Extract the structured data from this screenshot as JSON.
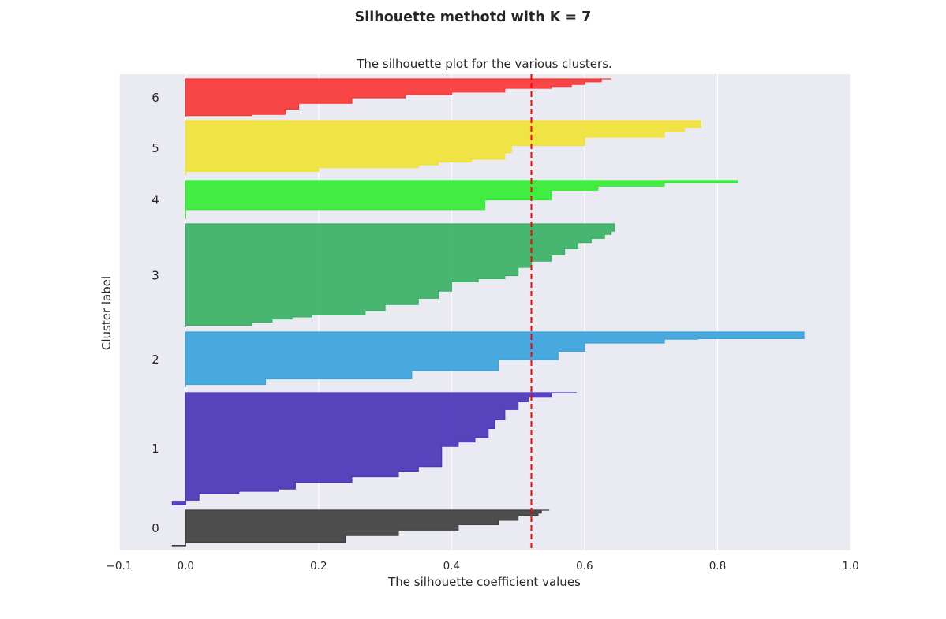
{
  "figure": {
    "suptitle": "Silhouette  methotd with K = 7"
  },
  "chart_data": {
    "type": "area",
    "title": "The silhouette plot for the various clusters.",
    "xlabel": "The silhouette coefficient values",
    "ylabel": "Cluster label",
    "xlim": [
      -0.1,
      1.0
    ],
    "xticks": [
      "−0.1",
      "0.0",
      "0.2",
      "0.4",
      "0.6",
      "0.8",
      "1.0"
    ],
    "grid": true,
    "average_silhouette": 0.52,
    "average_line_color": "#ff0000",
    "clusters": [
      {
        "label": "0",
        "color": "#3f3f3f",
        "profile": [
          [
            0,
            -0.02
          ],
          [
            0.03,
            0.0
          ],
          [
            0.06,
            0.0
          ],
          [
            0.12,
            0.24
          ],
          [
            0.3,
            0.32
          ],
          [
            0.45,
            0.41
          ],
          [
            0.6,
            0.47
          ],
          [
            0.72,
            0.5
          ],
          [
            0.85,
            0.53
          ],
          [
            0.92,
            0.535
          ],
          [
            1.0,
            0.547
          ]
        ]
      },
      {
        "label": "1",
        "color": "#4a35b8",
        "profile": [
          [
            0,
            -0.02
          ],
          [
            0.03,
            0.0
          ],
          [
            0.04,
            0.02
          ],
          [
            0.1,
            0.08
          ],
          [
            0.12,
            0.14
          ],
          [
            0.14,
            0.165
          ],
          [
            0.2,
            0.25
          ],
          [
            0.25,
            0.32
          ],
          [
            0.3,
            0.35
          ],
          [
            0.34,
            0.385
          ],
          [
            0.48,
            0.385
          ],
          [
            0.52,
            0.41
          ],
          [
            0.56,
            0.435
          ],
          [
            0.6,
            0.455
          ],
          [
            0.68,
            0.465
          ],
          [
            0.76,
            0.48
          ],
          [
            0.85,
            0.5
          ],
          [
            0.92,
            0.515
          ],
          [
            0.96,
            0.55
          ],
          [
            1.0,
            0.588
          ]
        ]
      },
      {
        "label": "2",
        "color": "#3aa3dd",
        "profile": [
          [
            0,
            0.0
          ],
          [
            0.05,
            0.12
          ],
          [
            0.15,
            0.34
          ],
          [
            0.3,
            0.47
          ],
          [
            0.5,
            0.56
          ],
          [
            0.65,
            0.6
          ],
          [
            0.8,
            0.72
          ],
          [
            0.87,
            0.77
          ],
          [
            0.88,
            0.93
          ],
          [
            1.0,
            0.93
          ]
        ]
      },
      {
        "label": "3",
        "color": "#39b065",
        "profile": [
          [
            0,
            0.0
          ],
          [
            0.02,
            0.1
          ],
          [
            0.05,
            0.13
          ],
          [
            0.08,
            0.16
          ],
          [
            0.1,
            0.19
          ],
          [
            0.12,
            0.27
          ],
          [
            0.16,
            0.3
          ],
          [
            0.22,
            0.35
          ],
          [
            0.28,
            0.38
          ],
          [
            0.35,
            0.4
          ],
          [
            0.44,
            0.44
          ],
          [
            0.47,
            0.48
          ],
          [
            0.5,
            0.5
          ],
          [
            0.58,
            0.52
          ],
          [
            0.64,
            0.55
          ],
          [
            0.7,
            0.57
          ],
          [
            0.76,
            0.59
          ],
          [
            0.82,
            0.61
          ],
          [
            0.86,
            0.63
          ],
          [
            0.9,
            0.64
          ],
          [
            0.93,
            0.645
          ],
          [
            1.0,
            0.645
          ]
        ]
      },
      {
        "label": "4",
        "color": "#33ec33",
        "profile": [
          [
            0,
            0.0
          ],
          [
            0.25,
            0.45
          ],
          [
            0.5,
            0.55
          ],
          [
            0.75,
            0.62
          ],
          [
            0.85,
            0.72
          ],
          [
            0.95,
            0.83
          ],
          [
            1.0,
            0.83
          ]
        ]
      },
      {
        "label": "5",
        "color": "#f0e236",
        "profile": [
          [
            0,
            0.0
          ],
          [
            0.08,
            0.2
          ],
          [
            0.15,
            0.35
          ],
          [
            0.2,
            0.38
          ],
          [
            0.25,
            0.43
          ],
          [
            0.3,
            0.48
          ],
          [
            0.42,
            0.49
          ],
          [
            0.55,
            0.6
          ],
          [
            0.7,
            0.72
          ],
          [
            0.8,
            0.75
          ],
          [
            0.88,
            0.775
          ],
          [
            1.0,
            0.775
          ]
        ]
      },
      {
        "label": "6",
        "color": "#f83636",
        "profile": [
          [
            0,
            0.0
          ],
          [
            0.03,
            0.1
          ],
          [
            0.06,
            0.15
          ],
          [
            0.2,
            0.17
          ],
          [
            0.35,
            0.25
          ],
          [
            0.5,
            0.33
          ],
          [
            0.58,
            0.4
          ],
          [
            0.65,
            0.48
          ],
          [
            0.75,
            0.55
          ],
          [
            0.8,
            0.58
          ],
          [
            0.85,
            0.6
          ],
          [
            0.92,
            0.625
          ],
          [
            1.0,
            0.64
          ]
        ]
      }
    ]
  }
}
